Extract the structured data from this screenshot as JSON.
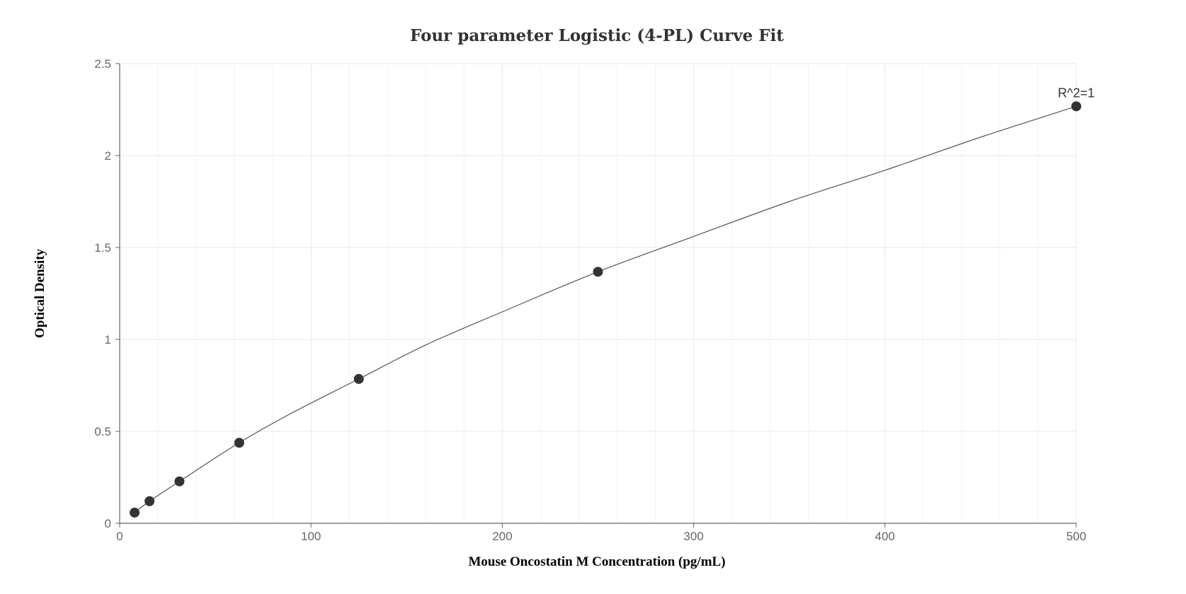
{
  "chart_data": {
    "type": "scatter",
    "title": "Four parameter Logistic (4-PL) Curve Fit",
    "xlabel": "Mouse Oncostatin M Concentration (pg/mL)",
    "ylabel": "Optical Density",
    "xlim": [
      0,
      500
    ],
    "ylim": [
      0,
      2.5
    ],
    "x_ticks": [
      "0",
      "100",
      "200",
      "300",
      "400",
      "500"
    ],
    "y_ticks": [
      "0",
      "0.5",
      "1",
      "1.5",
      "2",
      "2.5"
    ],
    "grid": true,
    "legend": "none",
    "points": [
      {
        "x": 7.8,
        "y": 0.058
      },
      {
        "x": 15.6,
        "y": 0.12
      },
      {
        "x": 31.25,
        "y": 0.228
      },
      {
        "x": 62.5,
        "y": 0.438
      },
      {
        "x": 125,
        "y": 0.785
      },
      {
        "x": 250,
        "y": 1.368
      },
      {
        "x": 500,
        "y": 2.268
      }
    ],
    "fit_curve": [
      {
        "x": 7.8,
        "y": 0.058
      },
      {
        "x": 15.6,
        "y": 0.12
      },
      {
        "x": 31.25,
        "y": 0.228
      },
      {
        "x": 62.5,
        "y": 0.438
      },
      {
        "x": 90,
        "y": 0.6
      },
      {
        "x": 125,
        "y": 0.785
      },
      {
        "x": 160,
        "y": 0.97
      },
      {
        "x": 200,
        "y": 1.15
      },
      {
        "x": 250,
        "y": 1.368
      },
      {
        "x": 300,
        "y": 1.56
      },
      {
        "x": 350,
        "y": 1.75
      },
      {
        "x": 400,
        "y": 1.92
      },
      {
        "x": 450,
        "y": 2.1
      },
      {
        "x": 500,
        "y": 2.268
      }
    ],
    "annotation": {
      "text": "R^2=1",
      "x": 500,
      "y": 2.268
    },
    "colors": {
      "marker": "#333333",
      "curve": "#555555",
      "grid": "#e6e9ef",
      "axis": "#666666"
    }
  }
}
